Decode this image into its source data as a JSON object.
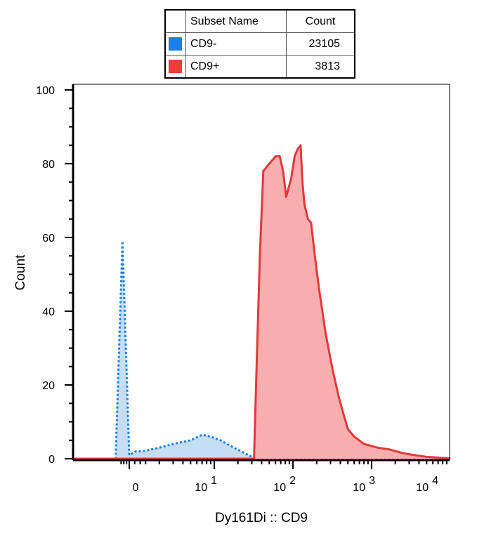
{
  "legend": {
    "header_name": "Subset Name",
    "header_count": "Count",
    "rows": [
      {
        "name": "CD9-",
        "count": "23105",
        "color": "#1a7fe8"
      },
      {
        "name": "CD9+",
        "count": "3813",
        "color": "#ee3b3b"
      }
    ]
  },
  "chart_data": {
    "type": "area",
    "xlabel": "Dy161Di :: CD9",
    "ylabel": "Count",
    "ylim": [
      0,
      100
    ],
    "y_ticks": [
      "0",
      "20",
      "40",
      "60",
      "80",
      "100"
    ],
    "x_scale": "biexponential",
    "x_ticks": [
      {
        "base": "0",
        "exp": ""
      },
      {
        "base": "10",
        "exp": "1"
      },
      {
        "base": "10",
        "exp": "2"
      },
      {
        "base": "10",
        "exp": "3"
      },
      {
        "base": "10",
        "exp": "4"
      }
    ],
    "series": [
      {
        "name": "CD9-",
        "color": "#1a7fe8",
        "fill": "#c6def5",
        "line_style": "dotted",
        "x": [
          -20,
          -1,
          -0.5,
          0,
          0.5,
          1,
          1.6,
          2,
          3,
          5,
          7,
          9,
          12,
          16,
          22,
          30,
          36,
          500,
          5000,
          20000
        ],
        "y": [
          0,
          0,
          59,
          1,
          2,
          2,
          2.5,
          3,
          4,
          5,
          6.5,
          6,
          5,
          3.5,
          2,
          0.5,
          0,
          0,
          0,
          0
        ]
      },
      {
        "name": "CD9+",
        "color": "#e03a3a",
        "fill": "#fbaeb0",
        "line_style": "solid",
        "x": [
          -20,
          32,
          34,
          38,
          42,
          50,
          60,
          68,
          75,
          82,
          95,
          105,
          115,
          125,
          132,
          140,
          155,
          170,
          190,
          215,
          260,
          320,
          380,
          440,
          500,
          600,
          800,
          1200,
          1700,
          2500,
          3500,
          5000,
          7000,
          10000,
          20000
        ],
        "y": [
          0,
          0,
          20,
          55,
          78,
          80,
          82,
          82,
          78,
          71,
          76,
          82,
          84,
          85,
          75,
          69,
          65,
          64,
          55,
          46,
          34,
          24,
          17,
          12,
          8,
          6,
          4,
          3,
          2.5,
          1.5,
          1,
          0.5,
          0.3,
          0.1,
          0
        ]
      }
    ]
  }
}
